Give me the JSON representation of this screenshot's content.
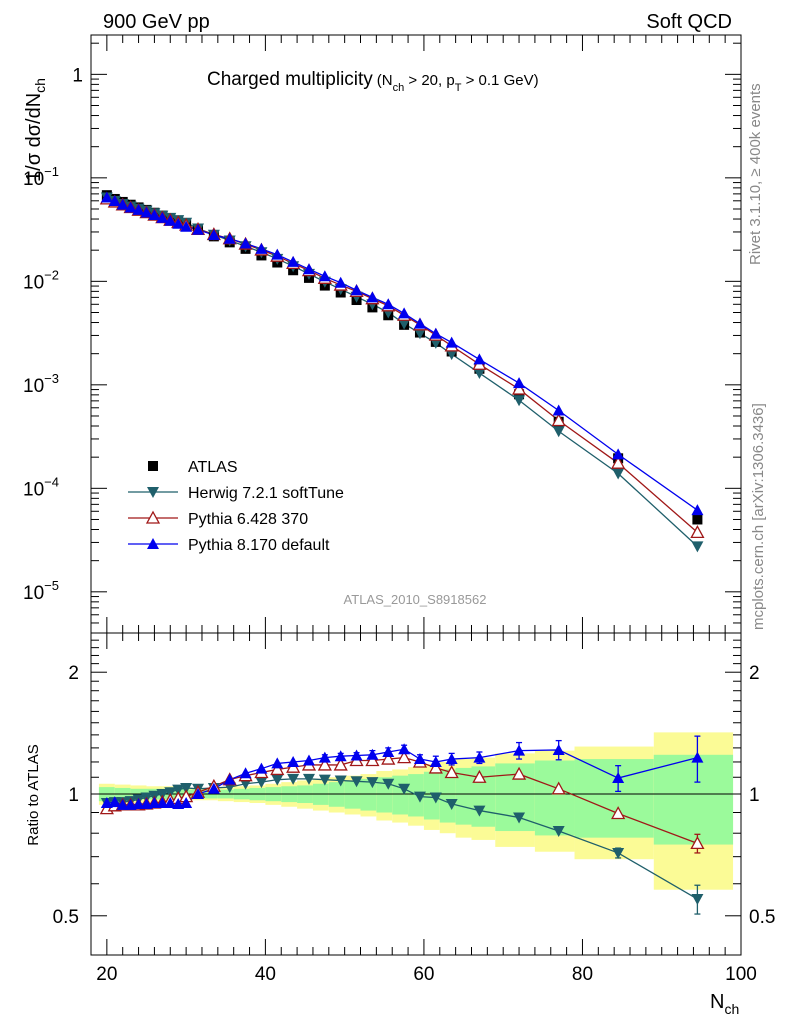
{
  "header": {
    "left": "900 GeV pp",
    "right": "Soft QCD"
  },
  "side": {
    "rivet": "Rivet 3.1.10, ≥ 400k events",
    "mcplots": "mcplots.cern.ch [arXiv:1306.3436]"
  },
  "top_title": {
    "main": "Charged multiplicity",
    "cut_pre": "(N",
    "cut_sub1": "ch",
    "cut_mid": " > 20, p",
    "cut_sub2": "T",
    "cut_post": " > 0.1 GeV)"
  },
  "analysis_id": "ATLAS_2010_S8918562",
  "colors": {
    "atlas": "#000000",
    "herwig": "#1f5f6b",
    "pythia6": "#a01818",
    "pythia8": "#0000ee",
    "band_inner": "#9bfa9b",
    "band_outer": "#fbfb96"
  },
  "chart_data": [
    {
      "type": "scatter",
      "panel": "main",
      "title": "Charged multiplicity (N_ch > 20, p_T > 0.1 GeV)",
      "ylabel": "1/σ dσ/dN",
      "ylabel_sub": "ch",
      "yscale": "log",
      "xlim": [
        18,
        100
      ],
      "ylim": [
        4e-06,
        2.4
      ],
      "yticks": [
        {
          "value": 1,
          "base": "1",
          "exp": ""
        },
        {
          "value": 0.1,
          "base": "10",
          "exp": "−1"
        },
        {
          "value": 0.01,
          "base": "10",
          "exp": "−2"
        },
        {
          "value": 0.001,
          "base": "10",
          "exp": "−3"
        },
        {
          "value": 0.0001,
          "base": "10",
          "exp": "−4"
        },
        {
          "value": 1e-05,
          "base": "10",
          "exp": "−5"
        }
      ],
      "legend_position": "bottom-left",
      "x": [
        20,
        21,
        22,
        23,
        24,
        25,
        26,
        27,
        28,
        29,
        30,
        31.5,
        33.5,
        35.5,
        37.5,
        39.5,
        41.5,
        43.5,
        45.5,
        47.5,
        49.5,
        51.5,
        53.5,
        55.5,
        57.5,
        59.5,
        61.5,
        63.5,
        67,
        72,
        77,
        84.5,
        94.5
      ],
      "series": [
        {
          "name": "ATLAS",
          "key": "atlas",
          "marker": "square",
          "values": [
            0.068,
            0.0625,
            0.0585,
            0.055,
            0.0518,
            0.049,
            0.046,
            0.0432,
            0.0405,
            0.038,
            0.0355,
            0.0315,
            0.0272,
            0.0238,
            0.0206,
            0.0178,
            0.0152,
            0.0128,
            0.0108,
            0.0091,
            0.0078,
            0.0066,
            0.0056,
            0.0047,
            0.0038,
            0.0032,
            0.0026,
            0.0021,
            0.00143,
            0.00081,
            0.00044,
            0.000195,
            5e-05
          ]
        },
        {
          "name": "Herwig 7.2.1 softTune",
          "key": "herwig",
          "marker": "triangle-down",
          "values": [
            0.0645,
            0.0597,
            0.0559,
            0.0528,
            0.0503,
            0.0481,
            0.0455,
            0.0432,
            0.041,
            0.039,
            0.0368,
            0.0324,
            0.0282,
            0.0248,
            0.0218,
            0.0191,
            0.0165,
            0.014,
            0.0118,
            0.0099,
            0.0084,
            0.0071,
            0.006,
            0.005,
            0.0039,
            0.00315,
            0.00254,
            0.00198,
            0.0013,
            0.00071,
            0.000356,
            0.000139,
            2.75e-05
          ]
        },
        {
          "name": "Pythia 6.428 370",
          "key": "pythia6",
          "marker": "triangle-up-open",
          "values": [
            0.0626,
            0.0585,
            0.0549,
            0.0517,
            0.0487,
            0.0462,
            0.0437,
            0.0413,
            0.039,
            0.037,
            0.0349,
            0.0318,
            0.0284,
            0.0258,
            0.0229,
            0.0201,
            0.0175,
            0.0149,
            0.0127,
            0.0107,
            0.0092,
            0.008,
            0.0068,
            0.0058,
            0.0047,
            0.0038,
            0.00302,
            0.00238,
            0.00158,
            0.00091,
            0.000452,
            0.000175,
            3.75e-05
          ]
        },
        {
          "name": "Pythia 8.170 default",
          "key": "pythia8",
          "marker": "triangle-up",
          "values": [
            0.0646,
            0.0597,
            0.0551,
            0.0517,
            0.049,
            0.0463,
            0.0438,
            0.041,
            0.0385,
            0.036,
            0.0337,
            0.0315,
            0.028,
            0.0258,
            0.0232,
            0.0206,
            0.0181,
            0.0154,
            0.0131,
            0.0112,
            0.0097,
            0.0082,
            0.007,
            0.006,
            0.0049,
            0.0039,
            0.00312,
            0.00256,
            0.00176,
            0.00104,
            0.000565,
            0.000213,
            6.15e-05
          ]
        }
      ]
    },
    {
      "type": "scatter",
      "panel": "ratio",
      "ylabel": "Ratio to ATLAS",
      "xlabel": "N",
      "xlabel_sub": "ch",
      "yscale": "log",
      "xlim": [
        18,
        100
      ],
      "ylim": [
        0.4,
        2.5
      ],
      "xticks": [
        20,
        40,
        60,
        80,
        100
      ],
      "yticks": [
        0.5,
        1,
        2
      ],
      "bands": {
        "edges": [
          19,
          21,
          23,
          25,
          27,
          29,
          30,
          32,
          34,
          36,
          38,
          40,
          42,
          44,
          46,
          48,
          50,
          52,
          54,
          56,
          58,
          60,
          62,
          64,
          66,
          69,
          74,
          79,
          89,
          99
        ],
        "inner": [
          0.04,
          0.035,
          0.03,
          0.03,
          0.03,
          0.03,
          0.025,
          0.025,
          0.025,
          0.03,
          0.035,
          0.04,
          0.045,
          0.05,
          0.06,
          0.07,
          0.08,
          0.09,
          0.1,
          0.11,
          0.12,
          0.135,
          0.15,
          0.16,
          0.17,
          0.19,
          0.21,
          0.22,
          0.25
        ],
        "outer": [
          0.06,
          0.055,
          0.05,
          0.045,
          0.045,
          0.04,
          0.035,
          0.035,
          0.04,
          0.045,
          0.05,
          0.06,
          0.07,
          0.08,
          0.09,
          0.1,
          0.11,
          0.12,
          0.14,
          0.15,
          0.165,
          0.185,
          0.2,
          0.22,
          0.23,
          0.26,
          0.28,
          0.31,
          0.42
        ]
      },
      "x": [
        20,
        21,
        22,
        23,
        24,
        25,
        26,
        27,
        28,
        29,
        30,
        31.5,
        33.5,
        35.5,
        37.5,
        39.5,
        41.5,
        43.5,
        45.5,
        47.5,
        49.5,
        51.5,
        53.5,
        55.5,
        57.5,
        59.5,
        61.5,
        63.5,
        67,
        72,
        77,
        84.5,
        94.5
      ],
      "series": [
        {
          "name": "Herwig 7.2.1 softTune",
          "key": "herwig",
          "marker": "triangle-down",
          "values": [
            0.95,
            0.955,
            0.955,
            0.96,
            0.97,
            0.98,
            0.99,
            1.0,
            1.01,
            1.025,
            1.035,
            1.03,
            1.035,
            1.04,
            1.06,
            1.07,
            1.085,
            1.09,
            1.09,
            1.085,
            1.08,
            1.075,
            1.07,
            1.06,
            1.03,
            0.985,
            0.98,
            0.945,
            0.91,
            0.875,
            0.81,
            0.715,
            0.55
          ],
          "errors": [
            0,
            0,
            0,
            0,
            0,
            0,
            0,
            0,
            0,
            0,
            0,
            0,
            0,
            0,
            0,
            0,
            0,
            0,
            0,
            0,
            0,
            0,
            0,
            0,
            0,
            0,
            0,
            0,
            0,
            0,
            0,
            0.02,
            0.045
          ]
        },
        {
          "name": "Pythia 6.428 370",
          "key": "pythia6",
          "marker": "triangle-up-open",
          "values": [
            0.92,
            0.935,
            0.94,
            0.94,
            0.94,
            0.945,
            0.95,
            0.955,
            0.965,
            0.975,
            0.985,
            1.01,
            1.045,
            1.085,
            1.11,
            1.13,
            1.15,
            1.165,
            1.18,
            1.18,
            1.18,
            1.21,
            1.21,
            1.22,
            1.23,
            1.2,
            1.16,
            1.13,
            1.1,
            1.12,
            1.03,
            0.895,
            0.755
          ],
          "errors": [
            0,
            0,
            0,
            0,
            0,
            0,
            0,
            0,
            0,
            0,
            0,
            0,
            0,
            0,
            0,
            0,
            0,
            0,
            0,
            0,
            0,
            0,
            0,
            0,
            0,
            0,
            0,
            0,
            0,
            0,
            0,
            0,
            0.04
          ]
        },
        {
          "name": "Pythia 8.170 default",
          "key": "pythia8",
          "marker": "triangle-up",
          "values": [
            0.95,
            0.955,
            0.94,
            0.94,
            0.945,
            0.945,
            0.95,
            0.95,
            0.95,
            0.945,
            0.95,
            1.0,
            1.03,
            1.085,
            1.125,
            1.155,
            1.19,
            1.2,
            1.21,
            1.23,
            1.24,
            1.245,
            1.25,
            1.27,
            1.29,
            1.22,
            1.2,
            1.22,
            1.23,
            1.28,
            1.285,
            1.095,
            1.23
          ],
          "errors": [
            0,
            0,
            0,
            0,
            0,
            0,
            0,
            0,
            0,
            0,
            0,
            0,
            0,
            0,
            0,
            0,
            0,
            0,
            0,
            0.02,
            0.02,
            0.02,
            0.03,
            0.03,
            0.03,
            0.03,
            0.04,
            0.04,
            0.04,
            0.06,
            0.07,
            0.08,
            0.16
          ]
        }
      ]
    }
  ]
}
